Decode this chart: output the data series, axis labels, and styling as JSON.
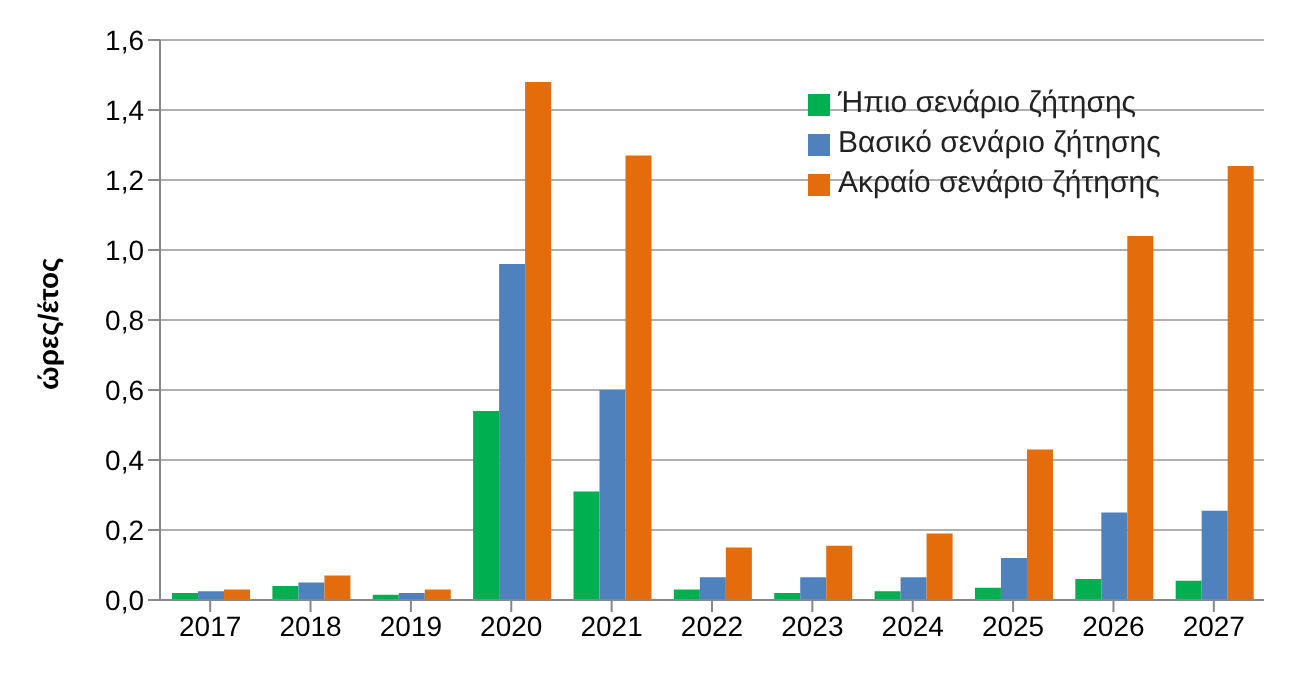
{
  "chart_data": {
    "type": "bar",
    "ylabel": "ώρες/έτος",
    "categories": [
      "2017",
      "2018",
      "2019",
      "2020",
      "2021",
      "2022",
      "2023",
      "2024",
      "2025",
      "2026",
      "2027"
    ],
    "series": [
      {
        "name": "Ήπιο σενάριο ζήτησης",
        "color": "#00b050",
        "values": [
          0.02,
          0.04,
          0.015,
          0.54,
          0.31,
          0.03,
          0.02,
          0.025,
          0.035,
          0.06,
          0.055
        ]
      },
      {
        "name": "Βασικό σενάριο ζήτησης",
        "color": "#4f81bd",
        "values": [
          0.025,
          0.05,
          0.02,
          0.96,
          0.6,
          0.065,
          0.065,
          0.065,
          0.12,
          0.25,
          0.255
        ]
      },
      {
        "name": "Ακραίο σενάριο ζήτησης",
        "color": "#e46c0a",
        "values": [
          0.03,
          0.07,
          0.03,
          1.48,
          1.27,
          0.15,
          0.155,
          0.19,
          0.43,
          1.04,
          1.24
        ]
      }
    ],
    "ylim": [
      0,
      1.6
    ],
    "yticks": [
      {
        "value": 0,
        "label": "0,0"
      },
      {
        "value": 0.2,
        "label": "0,2"
      },
      {
        "value": 0.4,
        "label": "0,4"
      },
      {
        "value": 0.6,
        "label": "0,6"
      },
      {
        "value": 0.8,
        "label": "0,8"
      },
      {
        "value": 1,
        "label": "1,0"
      },
      {
        "value": 1.2,
        "label": "1,2"
      },
      {
        "value": 1.4,
        "label": "1,4"
      },
      {
        "value": 1.6,
        "label": "1,6"
      }
    ],
    "grid": "y",
    "legend": "top right"
  }
}
